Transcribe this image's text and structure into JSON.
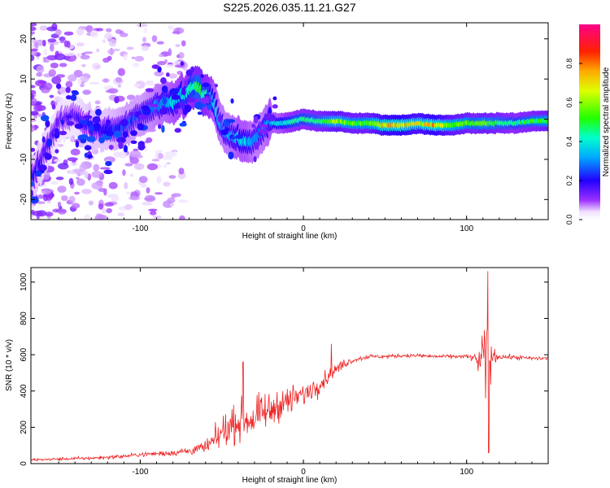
{
  "figure_title": "S225.2026.035.11.21.G27",
  "chart_data": [
    {
      "type": "heatmap",
      "title": "S225.2026.035.11.21.G27",
      "xlabel": "Height of straight line (km)",
      "ylabel": "Frequency (Hz)",
      "xlim": [
        -167,
        150
      ],
      "ylim": [
        -25,
        24
      ],
      "x_ticks": [
        -100,
        0,
        100
      ],
      "y_ticks": [
        -20,
        -10,
        0,
        10,
        20
      ],
      "colorbar": {
        "label": "Normalized spectral amplitude",
        "range": [
          0,
          1
        ],
        "ticks": [
          "0.0",
          "0.2",
          "0.4",
          "0.6",
          "0.8"
        ],
        "colormap": "white-violet-blue-cyan-green-yellow-red-magenta"
      },
      "ridge": {
        "x": [
          -167,
          -150,
          -140,
          -130,
          -120,
          -110,
          -100,
          -90,
          -80,
          -70,
          -65,
          -60,
          -55,
          -50,
          -45,
          -40,
          -35,
          -30,
          -25,
          -20,
          -15,
          -10,
          -5,
          0,
          10,
          20,
          30,
          40,
          50,
          60,
          70,
          80,
          90,
          100,
          105,
          110,
          120,
          130,
          140,
          150
        ],
        "frequency": [
          -16,
          -1,
          1,
          -2,
          -3,
          -2,
          1,
          3,
          4,
          7,
          8,
          6,
          4,
          -2,
          -4,
          -5,
          -6,
          -5,
          -3,
          -1,
          -1,
          -1,
          -0.5,
          0,
          -0.5,
          -0.5,
          -1,
          -1,
          -1.5,
          -1.5,
          -1,
          -1.5,
          -1.5,
          -1,
          -1,
          -1,
          -1,
          -1,
          -0.5,
          -0.5
        ],
        "amplitude": [
          0.2,
          0.15,
          0.15,
          0.2,
          0.2,
          0.25,
          0.25,
          0.3,
          0.35,
          0.4,
          0.5,
          0.45,
          0.35,
          0.3,
          0.3,
          0.35,
          0.35,
          0.3,
          0.3,
          0.35,
          0.35,
          0.4,
          0.45,
          0.45,
          0.5,
          0.6,
          0.55,
          0.55,
          0.7,
          0.75,
          0.65,
          0.75,
          0.6,
          0.55,
          0.5,
          0.55,
          0.5,
          0.45,
          0.5,
          0.55
        ]
      }
    },
    {
      "type": "line",
      "xlabel": "Height of straight line (km)",
      "ylabel": "SNR (10 * v/v)",
      "xlim": [
        -167,
        150
      ],
      "ylim": [
        0,
        1080
      ],
      "x_ticks": [
        -100,
        0,
        100
      ],
      "y_ticks": [
        0,
        200,
        400,
        600,
        800,
        1000
      ],
      "color": "#ee2222",
      "series": [
        {
          "name": "SNR",
          "x": [
            -167,
            -150,
            -130,
            -110,
            -100,
            -90,
            -80,
            -70,
            -60,
            -55,
            -50,
            -45,
            -40,
            -35,
            -30,
            -25,
            -20,
            -15,
            -10,
            -5,
            0,
            5,
            10,
            15,
            20,
            25,
            30,
            35,
            40,
            50,
            60,
            70,
            80,
            90,
            100,
            105,
            108,
            110,
            112,
            114,
            116,
            120,
            130,
            140,
            150
          ],
          "values": [
            20,
            25,
            30,
            40,
            50,
            55,
            60,
            70,
            90,
            120,
            170,
            210,
            230,
            240,
            250,
            280,
            290,
            330,
            340,
            360,
            380,
            410,
            440,
            480,
            520,
            550,
            570,
            580,
            590,
            590,
            595,
            595,
            590,
            590,
            590,
            580,
            560,
            550,
            560,
            580,
            590,
            590,
            585,
            580,
            580
          ],
          "noise": [
            12,
            14,
            16,
            18,
            20,
            25,
            30,
            40,
            60,
            110,
            140,
            160,
            170,
            180,
            180,
            170,
            160,
            150,
            140,
            130,
            110,
            100,
            90,
            70,
            50,
            40,
            30,
            25,
            20,
            18,
            18,
            18,
            18,
            18,
            20,
            40,
            150,
            420,
            450,
            300,
            80,
            25,
            20,
            20,
            20
          ],
          "peaks": [
            {
              "x": -37,
              "value": 560
            },
            {
              "x": 17,
              "value": 660
            },
            {
              "x": 113,
              "value": 1060
            },
            {
              "x": 113.5,
              "value": 60
            }
          ]
        }
      ]
    }
  ]
}
